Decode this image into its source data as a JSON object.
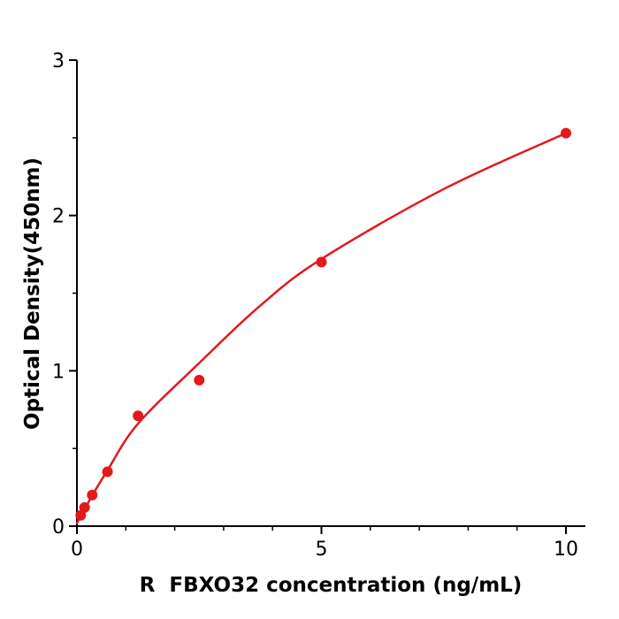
{
  "chart_data": {
    "type": "scatter",
    "title": "",
    "xlabel": "R  FBXO32 concentration (ng/mL)",
    "ylabel": "Optical Density(450nm)",
    "xlim": [
      0,
      10
    ],
    "ylim": [
      0,
      3
    ],
    "x_major_ticks": [
      0,
      5,
      10
    ],
    "x_minor_ticks": [
      1,
      2,
      3,
      4,
      6,
      7,
      8,
      9
    ],
    "y_major_ticks": [
      0,
      1,
      2,
      3
    ],
    "y_minor_ticks": [
      0.5,
      1.5,
      2.5
    ],
    "grid": false,
    "legend": null,
    "background_color": "#ffffff",
    "axis_color": "#000000",
    "point_color": "#e3191c",
    "curve_color": "#e3191c",
    "points": [
      {
        "x": 0.078,
        "y": 0.07
      },
      {
        "x": 0.156,
        "y": 0.12
      },
      {
        "x": 0.313,
        "y": 0.2
      },
      {
        "x": 0.625,
        "y": 0.35
      },
      {
        "x": 1.25,
        "y": 0.71
      },
      {
        "x": 2.5,
        "y": 0.94
      },
      {
        "x": 5,
        "y": 1.7
      },
      {
        "x": 10,
        "y": 2.53
      }
    ],
    "curve_points": [
      {
        "x": 0,
        "y": 0.02
      },
      {
        "x": 0.3,
        "y": 0.19
      },
      {
        "x": 0.625,
        "y": 0.36
      },
      {
        "x": 1.25,
        "y": 0.66
      },
      {
        "x": 2.5,
        "y": 1.05
      },
      {
        "x": 3.75,
        "y": 1.42
      },
      {
        "x": 5,
        "y": 1.72
      },
      {
        "x": 7.5,
        "y": 2.17
      },
      {
        "x": 10,
        "y": 2.53
      }
    ]
  }
}
